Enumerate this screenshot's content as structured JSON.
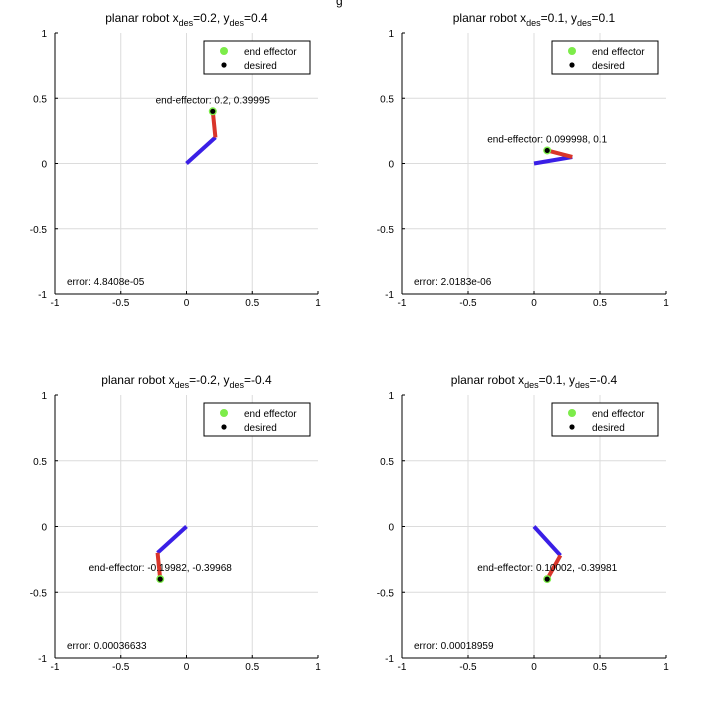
{
  "figure": {
    "top_label_fragment": "g"
  },
  "chart_data": [
    {
      "type": "line",
      "title_prefix": "planar robot x",
      "title_sub_x": "des",
      "title_mid": "=0.2, y",
      "title_sub_y": "des",
      "title_suffix": "=0.4",
      "xlim": [
        -1,
        1
      ],
      "ylim": [
        -1,
        1
      ],
      "xticks": [
        "-1",
        "-0.5",
        "0",
        "0.5",
        "1"
      ],
      "yticks": [
        "-1",
        "-0.5",
        "0",
        "0.5",
        "1"
      ],
      "grid": true,
      "legend": {
        "placement": "top-right",
        "entries": [
          "end effector",
          "desired"
        ]
      },
      "link1": {
        "name": "link 1",
        "color": "#3a1fe6",
        "x": [
          0,
          0.22
        ],
        "y": [
          0,
          0.2
        ]
      },
      "link2": {
        "name": "link 2",
        "color": "#d9352a",
        "x": [
          0.22,
          0.2
        ],
        "y": [
          0.2,
          0.4
        ]
      },
      "end_effector": {
        "x": 0.2,
        "y": 0.39995,
        "color": "#7dec4a"
      },
      "desired": {
        "x": 0.2,
        "y": 0.4
      },
      "annotation": "end-effector: 0.2, 0.39995",
      "error_text": "error: 4.8408e-05"
    },
    {
      "type": "line",
      "title_prefix": "planar robot x",
      "title_sub_x": "des",
      "title_mid": "=0.1, y",
      "title_sub_y": "des",
      "title_suffix": "=0.1",
      "xlim": [
        -1,
        1
      ],
      "ylim": [
        -1,
        1
      ],
      "xticks": [
        "-1",
        "-0.5",
        "0",
        "0.5",
        "1"
      ],
      "yticks": [
        "-1",
        "-0.5",
        "0",
        "0.5",
        "1"
      ],
      "grid": true,
      "legend": {
        "placement": "top-right",
        "entries": [
          "end effector",
          "desired"
        ]
      },
      "link1": {
        "name": "link 1",
        "color": "#3a1fe6",
        "x": [
          0,
          0.29
        ],
        "y": [
          0,
          0.05
        ]
      },
      "link2": {
        "name": "link 2",
        "color": "#d9352a",
        "x": [
          0.29,
          0.1
        ],
        "y": [
          0.05,
          0.1
        ]
      },
      "end_effector": {
        "x": 0.099998,
        "y": 0.1,
        "color": "#7dec4a"
      },
      "desired": {
        "x": 0.1,
        "y": 0.1
      },
      "annotation": "end-effector: 0.099998, 0.1",
      "error_text": "error: 2.0183e-06"
    },
    {
      "type": "line",
      "title_prefix": "planar robot x",
      "title_sub_x": "des",
      "title_mid": "=-0.2, y",
      "title_sub_y": "des",
      "title_suffix": "=-0.4",
      "xlim": [
        -1,
        1
      ],
      "ylim": [
        -1,
        1
      ],
      "xticks": [
        "-1",
        "-0.5",
        "0",
        "0.5",
        "1"
      ],
      "yticks": [
        "-1",
        "-0.5",
        "0",
        "0.5",
        "1"
      ],
      "grid": true,
      "legend": {
        "placement": "top-right",
        "entries": [
          "end effector",
          "desired"
        ]
      },
      "link1": {
        "name": "link 1",
        "color": "#3a1fe6",
        "x": [
          0,
          -0.22
        ],
        "y": [
          0,
          -0.2
        ]
      },
      "link2": {
        "name": "link 2",
        "color": "#d9352a",
        "x": [
          -0.22,
          -0.2
        ],
        "y": [
          -0.2,
          -0.4
        ]
      },
      "end_effector": {
        "x": -0.19982,
        "y": -0.39968,
        "color": "#7dec4a"
      },
      "desired": {
        "x": -0.2,
        "y": -0.4
      },
      "annotation": "end-effector: -0.19982, -0.39968",
      "error_text": "error: 0.00036633"
    },
    {
      "type": "line",
      "title_prefix": "planar robot x",
      "title_sub_x": "des",
      "title_mid": "=0.1, y",
      "title_sub_y": "des",
      "title_suffix": "=-0.4",
      "xlim": [
        -1,
        1
      ],
      "ylim": [
        -1,
        1
      ],
      "xticks": [
        "-1",
        "-0.5",
        "0",
        "0.5",
        "1"
      ],
      "yticks": [
        "-1",
        "-0.5",
        "0",
        "0.5",
        "1"
      ],
      "grid": true,
      "legend": {
        "placement": "top-right",
        "entries": [
          "end effector",
          "desired"
        ]
      },
      "link1": {
        "name": "link 1",
        "color": "#3a1fe6",
        "x": [
          0,
          0.2
        ],
        "y": [
          0,
          -0.22
        ]
      },
      "link2": {
        "name": "link 2",
        "color": "#d9352a",
        "x": [
          0.2,
          0.1
        ],
        "y": [
          -0.22,
          -0.4
        ]
      },
      "end_effector": {
        "x": 0.10002,
        "y": -0.39981,
        "color": "#7dec4a"
      },
      "desired": {
        "x": 0.1,
        "y": -0.4
      },
      "annotation": "end-effector: 0.10002, -0.39981",
      "error_text": "error: 0.00018959"
    }
  ]
}
